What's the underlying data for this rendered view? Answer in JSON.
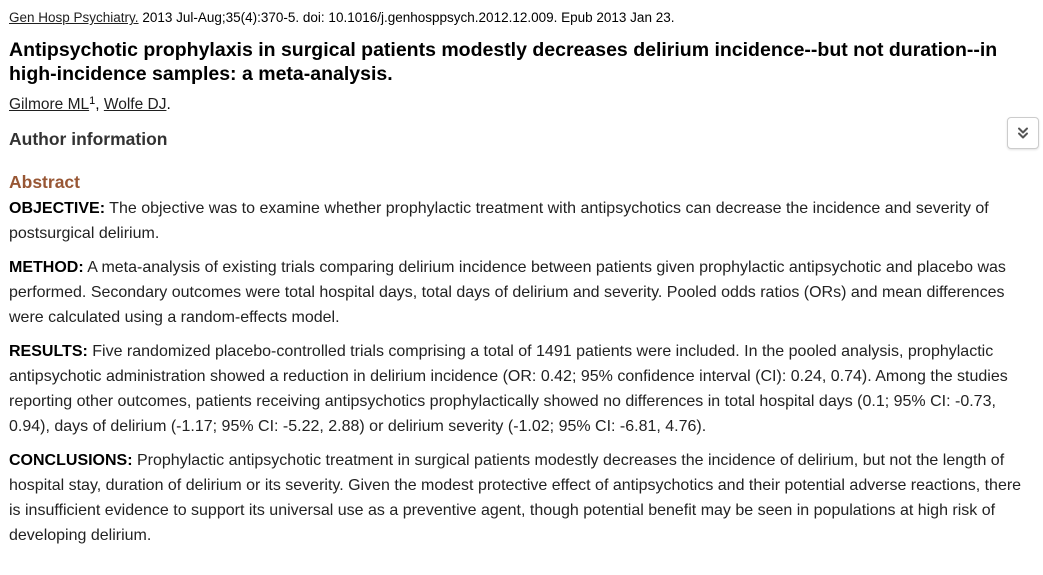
{
  "citation": {
    "journal": "Gen Hosp Psychiatry.",
    "details": " 2013 Jul-Aug;35(4):370-5. doi: 10.1016/j.genhosppsych.2012.12.009. Epub 2013 Jan 23."
  },
  "title": "Antipsychotic prophylaxis in surgical patients modestly decreases delirium incidence--but not duration--in high-incidence samples: a meta-analysis.",
  "authors": {
    "author1": "Gilmore ML",
    "author1_sup": "1",
    "separator": ", ",
    "author2": "Wolfe DJ",
    "end": "."
  },
  "author_info": {
    "label": "Author information"
  },
  "abstract": {
    "heading": "Abstract",
    "sections": [
      {
        "label": "OBJECTIVE:",
        "text": " The objective was to examine whether prophylactic treatment with antipsychotics can decrease the incidence and severity of postsurgical delirium."
      },
      {
        "label": "METHOD:",
        "text": " A meta-analysis of existing trials comparing delirium incidence between patients given prophylactic antipsychotic and placebo was performed. Secondary outcomes were total hospital days, total days of delirium and severity. Pooled odds ratios (ORs) and mean differences were calculated using a random-effects model."
      },
      {
        "label": "RESULTS:",
        "text": " Five randomized placebo-controlled trials comprising a total of 1491 patients were included. In the pooled analysis, prophylactic antipsychotic administration showed a reduction in delirium incidence (OR: 0.42; 95% confidence interval (CI): 0.24, 0.74). Among the studies reporting other outcomes, patients receiving antipsychotics prophylactically showed no differences in total hospital days (0.1; 95% CI: -0.73, 0.94), days of delirium (-1.17; 95% CI: -5.22, 2.88) or delirium severity (-1.02; 95% CI: -6.81, 4.76)."
      },
      {
        "label": "CONCLUSIONS:",
        "text": " Prophylactic antipsychotic treatment in surgical patients modestly decreases the incidence of delirium, but not the length of hospital stay, duration of delirium or its severity. Given the modest protective effect of antipsychotics and their potential adverse reactions, there is insufficient evidence to support its universal use as a preventive agent, though potential benefit may be seen in populations at high risk of developing delirium."
      }
    ]
  },
  "icons": {
    "expand": "double-chevron-down-icon"
  },
  "colors": {
    "abstract_heading": "#985735",
    "author_info": "#333333",
    "body_text": "#222222"
  }
}
